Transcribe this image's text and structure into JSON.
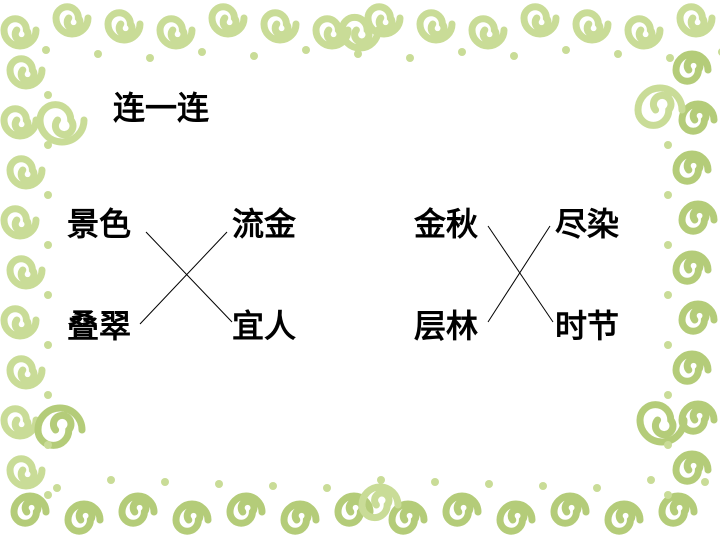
{
  "title": "连一连",
  "left_group": {
    "top_left": "景色",
    "top_right": "流金",
    "bottom_left": "叠翠",
    "bottom_right": "宜人"
  },
  "right_group": {
    "top_left": "金秋",
    "top_right": "尽染",
    "bottom_left": "层林",
    "bottom_right": "时节"
  },
  "colors": {
    "border_swirl": "#c9dc97",
    "border_swirl_dark": "#b4cc79",
    "text": "#000000",
    "connector": "#000000"
  }
}
